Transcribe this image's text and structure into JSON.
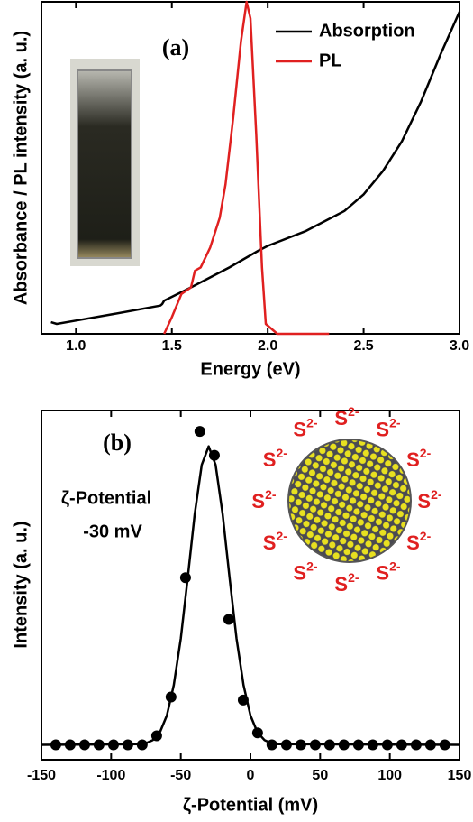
{
  "chart_data": [
    {
      "type": "line",
      "panel_label": "(a)",
      "x_label": "Energy (eV)",
      "y_label": "Absorbance / PL intensity (a. u.)",
      "xlim": [
        0.82,
        3.0
      ],
      "ylim": [
        0,
        1.0
      ],
      "xticks": [
        {
          "value": 1.0,
          "label": "1.0"
        },
        {
          "value": 1.5,
          "label": "1.5"
        },
        {
          "value": 2.0,
          "label": "2.0"
        },
        {
          "value": 2.5,
          "label": "2.5"
        },
        {
          "value": 3.0,
          "label": "3.0"
        }
      ],
      "legend": "upper right",
      "series": [
        {
          "name": "Absorption",
          "color": "#000000",
          "x": [
            0.87,
            0.9,
            1.0,
            1.2,
            1.44,
            1.45,
            1.46,
            1.6,
            1.8,
            1.95,
            2.0,
            2.2,
            2.4,
            2.5,
            2.6,
            2.7,
            2.8,
            2.9,
            3.0
          ],
          "values": [
            0.035,
            0.03,
            0.04,
            0.06,
            0.085,
            0.09,
            0.1,
            0.14,
            0.2,
            0.25,
            0.265,
            0.31,
            0.37,
            0.42,
            0.49,
            0.58,
            0.7,
            0.84,
            0.97
          ]
        },
        {
          "name": "PL",
          "color": "#e02020",
          "x": [
            1.46,
            1.5,
            1.55,
            1.6,
            1.62,
            1.65,
            1.7,
            1.75,
            1.78,
            1.82,
            1.86,
            1.89,
            1.91,
            1.94,
            1.97,
            1.99,
            2.05,
            2.32
          ],
          "values": [
            0.0,
            0.05,
            0.12,
            0.14,
            0.19,
            0.2,
            0.26,
            0.35,
            0.45,
            0.65,
            0.88,
            1.0,
            0.95,
            0.6,
            0.2,
            0.03,
            0.0,
            0.0
          ]
        }
      ]
    },
    {
      "type": "scatter",
      "panel_label": "(b)",
      "annotations": [
        "ζ-Potential",
        "-30 mV"
      ],
      "ion": {
        "symbol": "S",
        "charge": "2-"
      },
      "x_label": "ζ-Potential (mV)",
      "y_label": "Intensity (a. u.)",
      "xlim": [
        -150,
        150
      ],
      "ylim": [
        -0.05,
        1.12
      ],
      "xticks": [
        -150,
        -100,
        -50,
        0,
        50,
        100,
        150
      ],
      "series": [
        {
          "style": "markers",
          "color": "#000000",
          "x": [
            -139.7,
            -129.4,
            -119.0,
            -108.7,
            -98.3,
            -88.0,
            -77.7,
            -67.3,
            -57.0,
            -46.6,
            -36.3,
            -25.9,
            -15.6,
            -5.2,
            5.1,
            15.4,
            25.8,
            36.1,
            46.5,
            56.8,
            67.1,
            77.5,
            87.8,
            98.2,
            108.5,
            118.9,
            129.2,
            139.5
          ],
          "values": [
            0,
            0,
            0,
            0,
            0,
            0,
            0,
            0.03,
            0.16,
            0.56,
            1.05,
            0.97,
            0.42,
            0.15,
            0.04,
            0,
            0,
            0,
            0,
            0,
            0,
            0,
            0,
            0,
            0,
            0,
            0,
            0
          ]
        },
        {
          "style": "line",
          "color": "#000000",
          "x": [
            -150,
            -80,
            -75,
            -70,
            -65,
            -60,
            -55,
            -50,
            -45,
            -40,
            -35,
            -30,
            -25,
            -20,
            -15,
            -10,
            -5,
            0,
            5,
            10,
            15,
            20,
            150
          ],
          "values": [
            0,
            0.002,
            0.005,
            0.016,
            0.042,
            0.098,
            0.2,
            0.357,
            0.56,
            0.773,
            0.938,
            1.0,
            0.938,
            0.773,
            0.56,
            0.357,
            0.2,
            0.098,
            0.042,
            0.016,
            0.005,
            0.002,
            0
          ]
        }
      ]
    }
  ]
}
